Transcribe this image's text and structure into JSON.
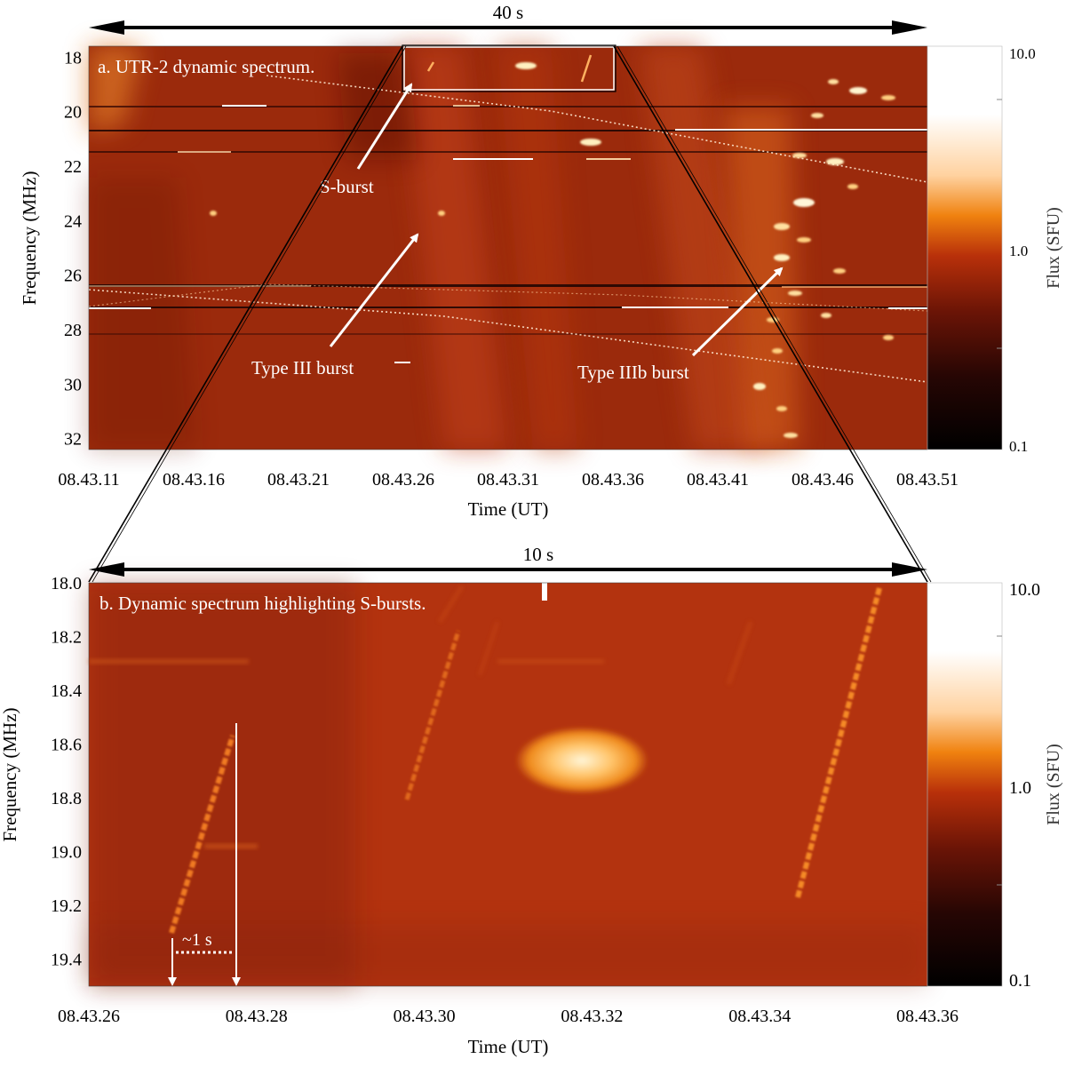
{
  "chart_data": [
    {
      "type": "heatmap",
      "title": "a. UTR-2 dynamic spectrum.",
      "span_label": "40 s",
      "xlabel": "Time (UT)",
      "ylabel": "Frequency (MHz)",
      "x_ticks": [
        "08.43.11",
        "08.43.16",
        "08.43.21",
        "08.43.26",
        "08.43.31",
        "08.43.36",
        "08.43.41",
        "08.43.46",
        "08.43.51"
      ],
      "y_ticks": [
        "18",
        "20",
        "22",
        "24",
        "26",
        "28",
        "30",
        "32"
      ],
      "y_tick_values": [
        18,
        20,
        22,
        24,
        26,
        28,
        30,
        32
      ],
      "ylim": [
        17.6,
        32.4
      ],
      "colorbar": {
        "label": "Flux (SFU)",
        "ticks": [
          "10.0",
          "1.0",
          "0.1"
        ],
        "scale": "log",
        "range": [
          0.1,
          10.0
        ]
      },
      "annotations": [
        {
          "text": "S-burst"
        },
        {
          "text": "Type III burst"
        },
        {
          "text": "Type IIIb burst"
        }
      ],
      "zoom_box": {
        "t_start": "08.43.26",
        "t_end": "08.43.36",
        "f_range": [
          18.0,
          19.5
        ]
      }
    },
    {
      "type": "heatmap",
      "title": "b. Dynamic spectrum highlighting S-bursts.",
      "span_label": "10 s",
      "xlabel": "Time (UT)",
      "ylabel": "Frequency (MHz)",
      "x_ticks": [
        "08.43.26",
        "08.43.28",
        "08.43.30",
        "08.43.32",
        "08.43.34",
        "08.43.36"
      ],
      "y_ticks": [
        "18.0",
        "18.2",
        "18.4",
        "18.6",
        "18.8",
        "19.0",
        "19.2",
        "19.4"
      ],
      "y_tick_values": [
        18.0,
        18.2,
        18.4,
        18.6,
        18.8,
        19.0,
        19.2,
        19.4
      ],
      "ylim": [
        18.0,
        19.5
      ],
      "colorbar": {
        "label": "Flux (SFU)",
        "ticks": [
          "10.0",
          "1.0",
          "0.1"
        ],
        "scale": "log",
        "range": [
          0.1,
          10.0
        ]
      },
      "duration_marker": {
        "text": "~1 s"
      }
    }
  ]
}
